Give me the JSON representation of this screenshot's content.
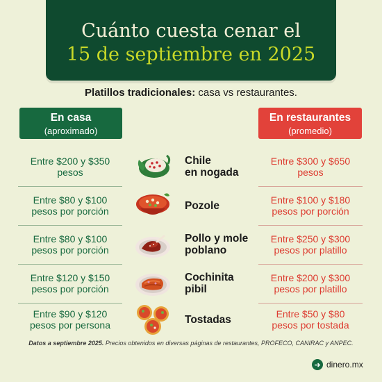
{
  "title": {
    "line1": "Cuánto cuesta cenar el",
    "line2": "15 de septiembre en 2025"
  },
  "subtitle": {
    "bold": "Platillos tradicionales:",
    "rest": " casa vs restaurantes."
  },
  "headers": {
    "home": {
      "label": "En casa",
      "sub": "(aproximado)"
    },
    "restaurant": {
      "label": "En restaurantes",
      "sub": "(promedio)"
    }
  },
  "rows": [
    {
      "dish_line1": "Chile",
      "dish_line2": "en nogada",
      "home_line1": "Entre $200 y $350",
      "home_line2": "pesos",
      "rest_line1": "Entre $300 y $650",
      "rest_line2": "pesos",
      "icon": "chile-en-nogada-icon"
    },
    {
      "dish_line1": "Pozole",
      "dish_line2": "",
      "home_line1": "Entre $80 y $100",
      "home_line2": "pesos por porción",
      "rest_line1": "Entre $100 y $180",
      "rest_line2": "pesos por porción",
      "icon": "pozole-icon"
    },
    {
      "dish_line1": "Pollo y mole",
      "dish_line2": "poblano",
      "home_line1": "Entre $80 y $100",
      "home_line2": "pesos por porción",
      "rest_line1": "Entre $250 y $300",
      "rest_line2": "pesos por platillo",
      "icon": "pollo-mole-icon"
    },
    {
      "dish_line1": "Cochinita",
      "dish_line2": "pibil",
      "home_line1": "Entre $120 y $150",
      "home_line2": "pesos por porción",
      "rest_line1": "Entre $200 y $300",
      "rest_line2": "pesos por platillo",
      "icon": "cochinita-pibil-icon"
    },
    {
      "dish_line1": "Tostadas",
      "dish_line2": "",
      "home_line1": "Entre $90 y $120",
      "home_line2": "pesos por persona",
      "rest_line1": "Entre $50 y $80",
      "rest_line2": "pesos por tostada",
      "icon": "tostadas-icon"
    }
  ],
  "footnote": {
    "bold": "Datos a septiembre 2025.",
    "rest": " Precios obtenidos en diversas páginas de restaurantes, PROFECO, CANIRAC y ANPEC."
  },
  "brand": {
    "name": "dinero.mx",
    "icon": "arrow-right-icon"
  },
  "colors": {
    "dark_green": "#0f4a2f",
    "accent_yellow": "#c8d928",
    "home_green": "#17693f",
    "restaurant_red": "#e2423a",
    "background": "#eef1d9"
  }
}
